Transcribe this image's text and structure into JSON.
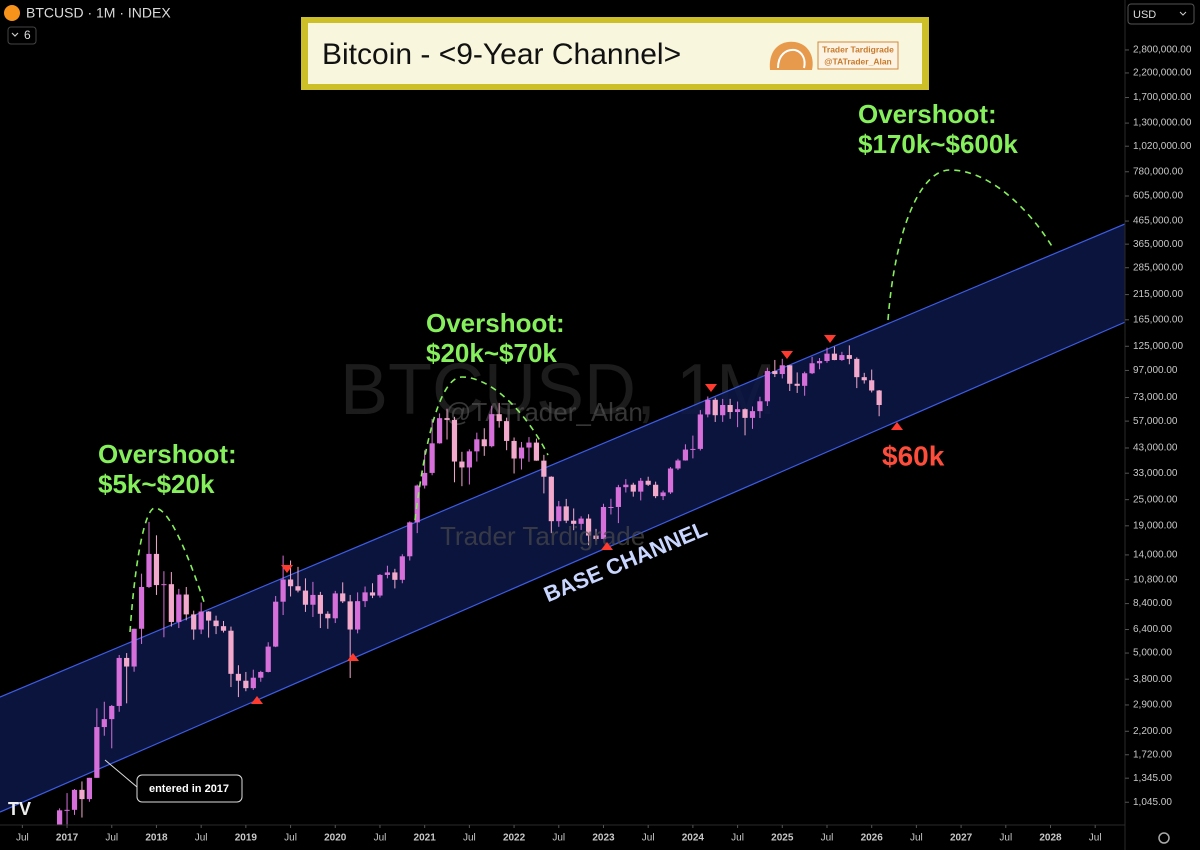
{
  "chart_data": {
    "type": "candlestick",
    "symbol": "BTCUSD · 1M · INDEX",
    "indicator_count": 6,
    "currency": "USD",
    "title": "Bitcoin - <9-Year Channel>",
    "logo_name": "Trader Tardigrade",
    "logo_handle": "@TATrader_Alan",
    "watermark_symbol": "BTCUSD, 1M",
    "watermark_handle": "@TATrader_Alan",
    "watermark_name": "Trader Tardigrade",
    "annotations": [
      {
        "title": "Overshoot:",
        "range": "$5k~$20k"
      },
      {
        "title": "Overshoot:",
        "range": "$20k~$70k"
      },
      {
        "title": "Overshoot:",
        "range": "$170k~$600k"
      }
    ],
    "target_label": "$60k",
    "channel_label": "BASE CHANNEL",
    "entry_note": "entered in 2017",
    "log_scale": true,
    "grid": false,
    "up_color": "#d66fd9",
    "down_color": "#f3a9cc",
    "channel_color": "#3d5ce6",
    "channel_fill": "#0c1848",
    "channel": {
      "x": [
        "2016-04",
        "2028-11"
      ],
      "upper": [
        3150,
        451000
      ],
      "lower": [
        943,
        161000
      ]
    },
    "xlim": [
      "2016-04",
      "2028-11"
    ],
    "xticks": [
      {
        "value": "2016-07",
        "label": "Jul"
      },
      {
        "value": "2017-01",
        "label": "2017"
      },
      {
        "value": "2017-07",
        "label": "Jul"
      },
      {
        "value": "2018-01",
        "label": "2018"
      },
      {
        "value": "2018-07",
        "label": "Jul"
      },
      {
        "value": "2019-01",
        "label": "2019"
      },
      {
        "value": "2019-07",
        "label": "Jul"
      },
      {
        "value": "2020-01",
        "label": "2020"
      },
      {
        "value": "2020-07",
        "label": "Jul"
      },
      {
        "value": "2021-01",
        "label": "2021"
      },
      {
        "value": "2021-07",
        "label": "Jul"
      },
      {
        "value": "2022-01",
        "label": "2022"
      },
      {
        "value": "2022-07",
        "label": "Jul"
      },
      {
        "value": "2023-01",
        "label": "2023"
      },
      {
        "value": "2023-07",
        "label": "Jul"
      },
      {
        "value": "2024-01",
        "label": "2024"
      },
      {
        "value": "2024-07",
        "label": "Jul"
      },
      {
        "value": "2025-01",
        "label": "2025"
      },
      {
        "value": "2025-07",
        "label": "Jul"
      },
      {
        "value": "2026-01",
        "label": "2026"
      },
      {
        "value": "2026-07",
        "label": "Jul"
      },
      {
        "value": "2027-01",
        "label": "2027"
      },
      {
        "value": "2027-07",
        "label": "Jul"
      },
      {
        "value": "2028-01",
        "label": "2028"
      },
      {
        "value": "2028-07",
        "label": "Jul"
      }
    ],
    "ylim": [
      823,
      4730000
    ],
    "yticks": [
      {
        "value": 2800000,
        "label": "2,800,000.00"
      },
      {
        "value": 2200000,
        "label": "2,200,000.00"
      },
      {
        "value": 1700000,
        "label": "1,700,000.00"
      },
      {
        "value": 1300000,
        "label": "1,300,000.00"
      },
      {
        "value": 1020000,
        "label": "1,020,000.00"
      },
      {
        "value": 780000,
        "label": "780,000.00"
      },
      {
        "value": 605000,
        "label": "605,000.00"
      },
      {
        "value": 465000,
        "label": "465,000.00"
      },
      {
        "value": 365000,
        "label": "365,000.00"
      },
      {
        "value": 285000,
        "label": "285,000.00"
      },
      {
        "value": 215000,
        "label": "215,000.00"
      },
      {
        "value": 165000,
        "label": "165,000.00"
      },
      {
        "value": 125000,
        "label": "125,000.00"
      },
      {
        "value": 97000,
        "label": "97,000.00"
      },
      {
        "value": 73000,
        "label": "73,000.00"
      },
      {
        "value": 57000,
        "label": "57,000.00"
      },
      {
        "value": 43000,
        "label": "43,000.00"
      },
      {
        "value": 33000,
        "label": "33,000.00"
      },
      {
        "value": 25000,
        "label": "25,000.00"
      },
      {
        "value": 19000,
        "label": "19,000.00"
      },
      {
        "value": 14000,
        "label": "14,000.00"
      },
      {
        "value": 10800,
        "label": "10,800.00"
      },
      {
        "value": 8400,
        "label": "8,400.00"
      },
      {
        "value": 6400,
        "label": "6,400.00"
      },
      {
        "value": 5000,
        "label": "5,000.00"
      },
      {
        "value": 3800,
        "label": "3,800.00"
      },
      {
        "value": 2900,
        "label": "2,900.00"
      },
      {
        "value": 2200,
        "label": "2,200.00"
      },
      {
        "value": 1720,
        "label": "1,720.00"
      },
      {
        "value": 1345,
        "label": "1,345.00"
      },
      {
        "value": 1045,
        "label": "1,045.00"
      }
    ],
    "x": [
      "2016-12",
      "2017-01",
      "2017-02",
      "2017-03",
      "2017-04",
      "2017-05",
      "2017-06",
      "2017-07",
      "2017-08",
      "2017-09",
      "2017-10",
      "2017-11",
      "2017-12",
      "2018-01",
      "2018-02",
      "2018-03",
      "2018-04",
      "2018-05",
      "2018-06",
      "2018-07",
      "2018-08",
      "2018-09",
      "2018-10",
      "2018-11",
      "2018-12",
      "2019-01",
      "2019-02",
      "2019-03",
      "2019-04",
      "2019-05",
      "2019-06",
      "2019-07",
      "2019-08",
      "2019-09",
      "2019-10",
      "2019-11",
      "2019-12",
      "2020-01",
      "2020-02",
      "2020-03",
      "2020-04",
      "2020-05",
      "2020-06",
      "2020-07",
      "2020-08",
      "2020-09",
      "2020-10",
      "2020-11",
      "2020-12",
      "2021-01",
      "2021-02",
      "2021-03",
      "2021-04",
      "2021-05",
      "2021-06",
      "2021-07",
      "2021-08",
      "2021-09",
      "2021-10",
      "2021-11",
      "2021-12",
      "2022-01",
      "2022-02",
      "2022-03",
      "2022-04",
      "2022-05",
      "2022-06",
      "2022-07",
      "2022-08",
      "2022-09",
      "2022-10",
      "2022-11",
      "2022-12",
      "2023-01",
      "2023-02",
      "2023-03",
      "2023-04",
      "2023-05",
      "2023-06",
      "2023-07",
      "2023-08",
      "2023-09",
      "2023-10",
      "2023-11",
      "2023-12",
      "2024-01",
      "2024-02",
      "2024-03",
      "2024-04",
      "2024-05",
      "2024-06",
      "2024-07",
      "2024-08",
      "2024-09",
      "2024-10",
      "2024-11",
      "2024-12",
      "2025-01",
      "2025-02",
      "2025-03",
      "2025-04",
      "2025-05",
      "2025-06",
      "2025-07",
      "2025-08",
      "2025-09",
      "2025-10",
      "2025-11",
      "2025-12",
      "2026-01",
      "2026-02"
    ],
    "open": [
      750,
      960,
      965,
      1190,
      1080,
      1350,
      2300,
      2500,
      2870,
      4750,
      4340,
      6450,
      10000,
      14150,
      10200,
      10300,
      6930,
      9240,
      7500,
      6400,
      7730,
      7030,
      6630,
      6320,
      4020,
      3740,
      3460,
      3860,
      4100,
      5350,
      8570,
      10820,
      10080,
      9630,
      8300,
      9200,
      7550,
      7200,
      9350,
      8600,
      6400,
      8620,
      9450,
      9140,
      11350,
      11650,
      10780,
      13800,
      19700,
      28990,
      33100,
      45150,
      58800,
      57750,
      37300,
      35050,
      41500,
      47100,
      43800,
      61300,
      57000,
      46300,
      38500,
      43200,
      45500,
      37650,
      31800,
      19950,
      23300,
      20050,
      19400,
      20500,
      17150,
      16550,
      23150,
      23150,
      28500,
      29250,
      27200,
      30480,
      29230,
      25940,
      26970,
      34670,
      37720,
      42280,
      42580,
      61130,
      71300,
      60640,
      67500,
      62700,
      64600,
      58970,
      63300,
      70200,
      96400,
      93400,
      102400,
      84350,
      82550,
      94200,
      104600,
      107100,
      115700,
      108200,
      114000,
      109500,
      90400,
      87500,
      78600
    ],
    "high": [
      980,
      1150,
      1200,
      1300,
      1350,
      2800,
      3000,
      2900,
      4900,
      5000,
      6450,
      11500,
      19800,
      17200,
      11800,
      11700,
      9800,
      10000,
      7800,
      8500,
      7760,
      7400,
      7000,
      6600,
      4400,
      4100,
      4200,
      4150,
      5600,
      9100,
      13900,
      13200,
      12350,
      10950,
      10550,
      9500,
      7750,
      9600,
      10500,
      9200,
      9450,
      10050,
      10400,
      11450,
      12500,
      12100,
      14100,
      19900,
      29300,
      41950,
      58350,
      61800,
      64900,
      59600,
      41300,
      42400,
      50500,
      52900,
      67000,
      69000,
      59100,
      48000,
      45800,
      48200,
      47450,
      40000,
      31950,
      24650,
      25200,
      22800,
      21000,
      21450,
      18400,
      23950,
      25250,
      29200,
      31000,
      29850,
      31400,
      31800,
      30200,
      27500,
      35200,
      38400,
      44700,
      48970,
      64000,
      73800,
      72800,
      71950,
      72000,
      70000,
      65100,
      66500,
      73600,
      99800,
      108300,
      109600,
      102500,
      95000,
      95750,
      111900,
      110500,
      123200,
      124500,
      117900,
      126200,
      111200,
      94600,
      97900,
      79000
    ],
    "low": [
      740,
      750,
      915,
      890,
      1050,
      1350,
      2100,
      1840,
      2700,
      2950,
      4110,
      5500,
      9900,
      9200,
      5900,
      6600,
      6500,
      7050,
      5750,
      6100,
      5880,
      6100,
      6200,
      3500,
      3150,
      3350,
      3400,
      3700,
      4080,
      5320,
      7450,
      9050,
      9450,
      7700,
      7300,
      6500,
      6450,
      6850,
      8450,
      3850,
      6150,
      8100,
      8900,
      8950,
      10950,
      9850,
      10400,
      13200,
      17600,
      28100,
      32300,
      45000,
      47000,
      30000,
      28800,
      29300,
      37300,
      39600,
      43300,
      53250,
      42000,
      32900,
      34300,
      37200,
      37600,
      26700,
      17600,
      18800,
      19550,
      18150,
      18200,
      15500,
      16300,
      16500,
      21400,
      19550,
      26950,
      25800,
      24800,
      28850,
      25400,
      24900,
      26550,
      34100,
      37650,
      38550,
      41880,
      59300,
      56500,
      56550,
      58400,
      53500,
      49100,
      52550,
      58900,
      66800,
      90500,
      89200,
      78200,
      76600,
      74400,
      93400,
      98200,
      105100,
      108000,
      107300,
      103500,
      80600,
      84500,
      77000,
      60000
    ],
    "close": [
      960,
      965,
      1190,
      1080,
      1350,
      2300,
      2500,
      2870,
      4750,
      4340,
      6450,
      10000,
      14150,
      10200,
      10300,
      6930,
      9240,
      7500,
      6400,
      7730,
      7030,
      6630,
      6320,
      4020,
      3740,
      3460,
      3860,
      4100,
      5350,
      8570,
      10820,
      10080,
      9630,
      8300,
      9200,
      7550,
      7200,
      9350,
      8600,
      6400,
      8620,
      9450,
      9140,
      11350,
      11650,
      10780,
      13800,
      19700,
      28990,
      33100,
      45150,
      58800,
      57750,
      37300,
      35050,
      41500,
      47100,
      43800,
      61300,
      57000,
      46300,
      38500,
      43200,
      45500,
      37650,
      31800,
      19950,
      23300,
      20050,
      19400,
      20500,
      17150,
      16550,
      23150,
      23150,
      28500,
      29250,
      27200,
      30480,
      29230,
      25940,
      26970,
      34670,
      37720,
      42280,
      42580,
      61130,
      71300,
      60640,
      67500,
      62700,
      64600,
      58970,
      63300,
      70200,
      96400,
      93400,
      102400,
      84350,
      82550,
      94200,
      104600,
      107100,
      115700,
      108200,
      114000,
      109500,
      90400,
      87500,
      78600,
      67500
    ]
  }
}
